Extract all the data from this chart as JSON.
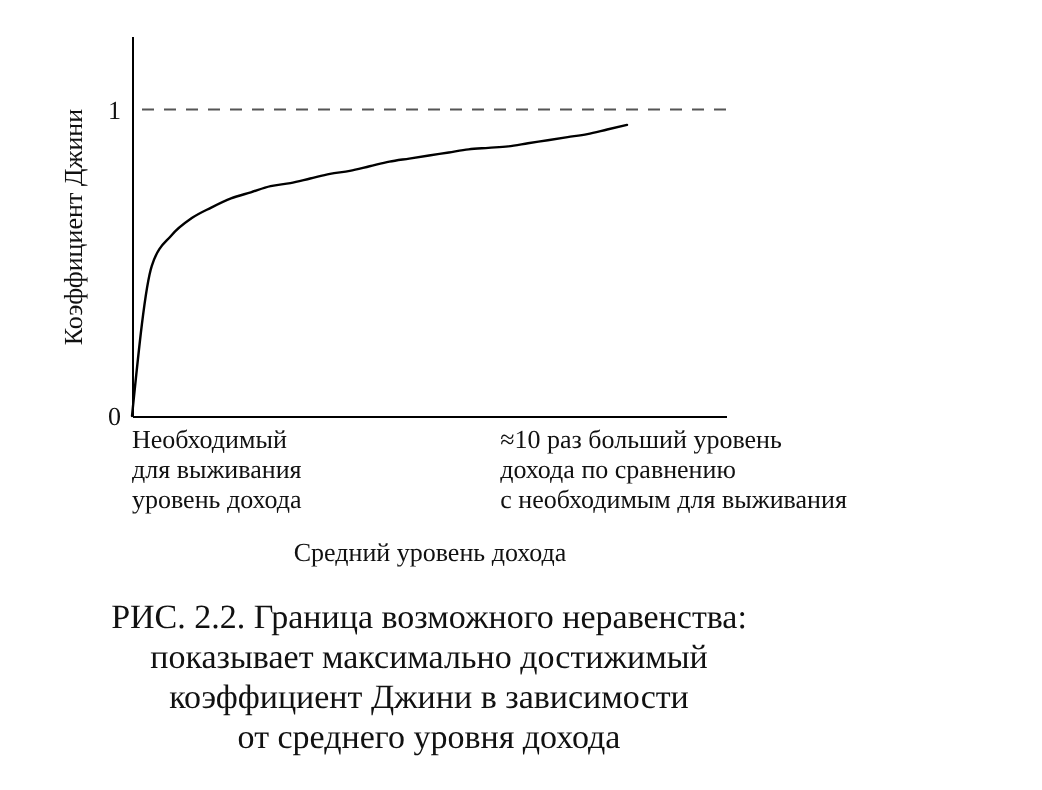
{
  "chart_data": {
    "type": "line",
    "title": "РИС. 2.2. Граница возможного неравенства:\nпоказывает максимально достижимый\nкоэффициент Джини в зависимости\nот среднего уровня дохода",
    "xlabel": "Средний уровень дохода",
    "ylabel": "Коэффициент Джини",
    "annotations": [
      "Необходимый\nдля выживания\nуровень дохода",
      "≈10 раз больший уровень\nдохода по сравнению\nс необходимым для выживания"
    ],
    "categories": [
      null,
      null,
      null,
      null,
      null,
      null,
      null,
      null,
      null,
      null,
      null,
      null,
      null,
      null,
      null,
      null,
      null,
      null,
      null,
      null,
      null,
      null,
      null,
      null,
      null,
      null,
      null,
      null,
      null,
      null,
      null
    ],
    "series": [
      {
        "color": "#000000",
        "values": [
          0,
          0.49,
          0.59,
          0.645,
          0.68,
          0.71,
          0.73,
          0.75,
          0.76,
          0.775,
          0.79,
          0.8,
          0.815,
          0.83,
          0.84,
          0.85,
          0.86,
          0.87,
          0.875,
          0.88,
          0.89,
          0.9,
          0.91,
          0.92,
          0.935,
          0.95,
          null,
          null,
          null,
          null,
          null
        ]
      }
    ],
    "ylim": [
      0,
      1.24
    ],
    "yticks": [
      0,
      1
    ],
    "tick_labels": "y",
    "ref_lines": [
      {
        "axis": "y",
        "value": 1,
        "line_style": "dashed",
        "color": "#555555"
      }
    ],
    "marker": "none",
    "line_style": "solid"
  }
}
